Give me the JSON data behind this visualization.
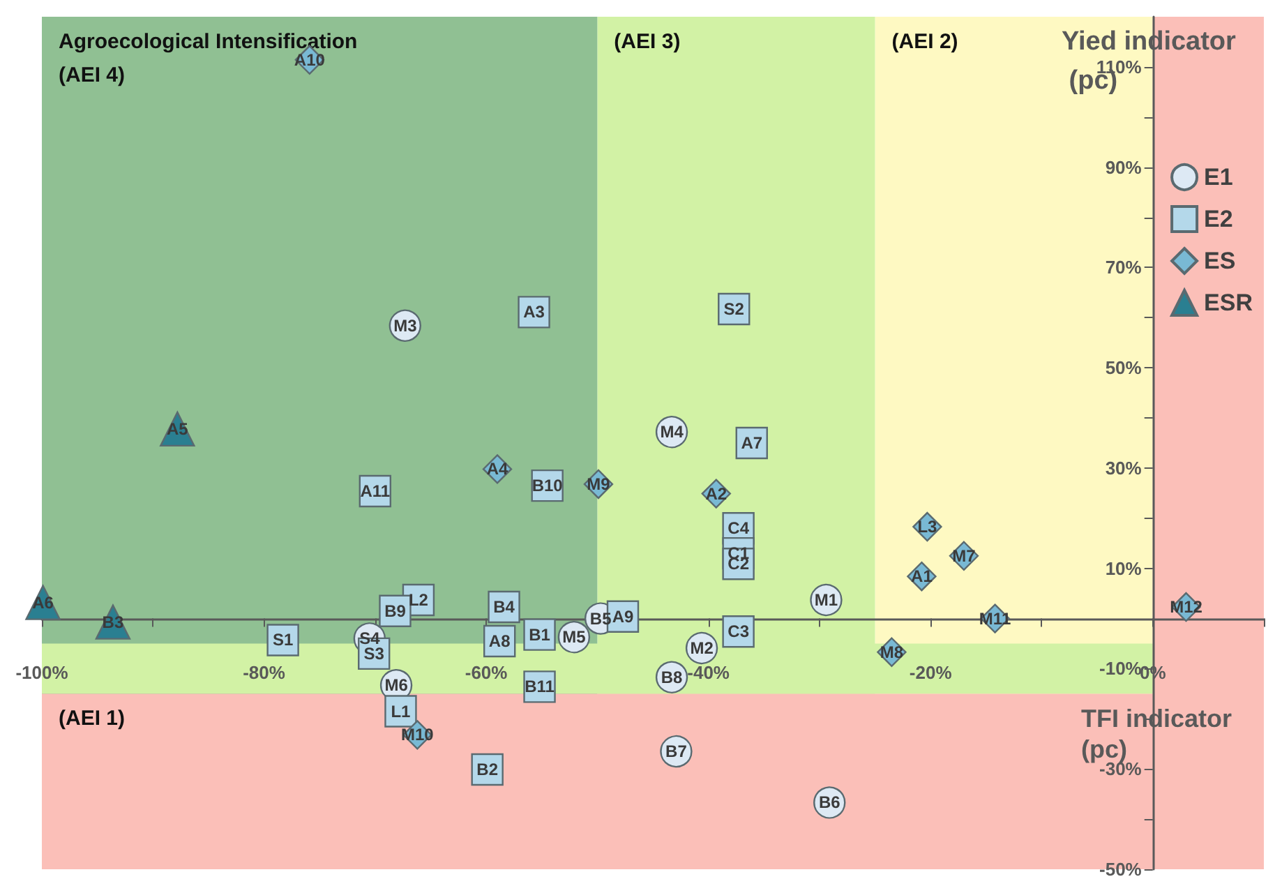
{
  "chart_data": {
    "type": "scatter",
    "xlabel": "TFI indicator (pc)",
    "ylabel": "Yied indicator (pc)",
    "xlim": [
      -100,
      10
    ],
    "ylim": [
      -50,
      120
    ],
    "xticks": [
      {
        "value": -100,
        "label": "-100%"
      },
      {
        "value": -90,
        "label": null
      },
      {
        "value": -80,
        "label": "-80%"
      },
      {
        "value": -70,
        "label": null
      },
      {
        "value": -60,
        "label": "-60%"
      },
      {
        "value": -50,
        "label": null
      },
      {
        "value": -40,
        "label": "-40%"
      },
      {
        "value": -30,
        "label": null
      },
      {
        "value": -20,
        "label": "-20%"
      },
      {
        "value": -10,
        "label": null
      },
      {
        "value": 0,
        "label": "0%"
      },
      {
        "value": 10,
        "label": null
      }
    ],
    "yticks": [
      {
        "value": -50,
        "label": "-50%"
      },
      {
        "value": -40,
        "label": null
      },
      {
        "value": -30,
        "label": "-30%"
      },
      {
        "value": -20,
        "label": null
      },
      {
        "value": -10,
        "label": "-10%"
      },
      {
        "value": 10,
        "label": "10%"
      },
      {
        "value": 20,
        "label": null
      },
      {
        "value": 30,
        "label": "30%"
      },
      {
        "value": 40,
        "label": null
      },
      {
        "value": 50,
        "label": "50%"
      },
      {
        "value": 60,
        "label": null
      },
      {
        "value": 70,
        "label": "70%"
      },
      {
        "value": 80,
        "label": null
      },
      {
        "value": 90,
        "label": "90%"
      },
      {
        "value": 100,
        "label": null
      },
      {
        "value": 110,
        "label": "110%"
      }
    ],
    "grid": false,
    "legend": "right",
    "bands": [
      {
        "axis": "x",
        "from": -25,
        "to": 0,
        "label": "(AEI 2)",
        "color": "#fef9c2"
      },
      {
        "axis": "x",
        "from": -50,
        "to": -25,
        "label": "(AEI 3)",
        "color": "#d2f2a5"
      },
      {
        "axis": "x",
        "from": -100,
        "to": -50,
        "label": "Agroecological Intensification (AEI 4)",
        "color": "#90c093"
      },
      {
        "axis": "y",
        "from": -15,
        "to": -5,
        "color": "#d2f2a5"
      },
      {
        "axis": "y",
        "from": -50,
        "to": -15,
        "label": "(AEI 1)",
        "color": "#fbbfb8"
      },
      {
        "axis": "x",
        "from": 0,
        "to": 10,
        "color": "#fbbfb8"
      }
    ],
    "series": [
      {
        "name": "E1",
        "color": "#dde9f4",
        "marker": "circle",
        "x": [
          -67.3,
          -43.3,
          -29.4,
          -52.1,
          -40.6,
          -70.5,
          -68.1,
          -43.3,
          -42.9,
          -29.1,
          -49.7
        ],
        "values": [
          58.4,
          37.2,
          3.7,
          -3.7,
          -5.9,
          -4.0,
          -13.3,
          -11.7,
          -26.5,
          -36.7,
          0.0
        ],
        "value_labels": [
          "M3",
          "M4",
          "M1",
          "M5",
          "M2",
          "S4",
          "M6",
          "B8",
          "B7",
          "B6",
          "B5"
        ]
      },
      {
        "name": "E2",
        "color": "#b4d8ea",
        "marker": "square",
        "x": [
          -55.7,
          -37.7,
          -36.1,
          -70.0,
          -54.5,
          -37.3,
          -37.3,
          -37.3,
          -37.3,
          -66.1,
          -68.2,
          -58.4,
          -47.7,
          -55.2,
          -78.3,
          -70.1,
          -58.8,
          -55.2,
          -67.7,
          -59.9
        ],
        "values": [
          61.1,
          61.7,
          35.0,
          25.4,
          26.5,
          18.0,
          13.0,
          10.9,
          -2.6,
          3.7,
          1.5,
          2.3,
          0.4,
          -3.2,
          -4.3,
          -7.0,
          -4.5,
          -13.6,
          -18.5,
          -30.1
        ],
        "value_labels": [
          "A3",
          "S2",
          "A7",
          "A11",
          "B10",
          "C4",
          "C1",
          "C2",
          "C3",
          "L2",
          "B9",
          "B4",
          "A9",
          "B1",
          "S1",
          "S3",
          "A8",
          "B11",
          "L1",
          "B2"
        ]
      },
      {
        "name": "ES",
        "color": "#79b9d4",
        "marker": "diamond",
        "x": [
          -75.9,
          -59.0,
          -49.9,
          -39.3,
          -20.3,
          -17.0,
          -20.8,
          -14.2,
          -23.5,
          -66.2,
          3.0
        ],
        "values": [
          111.4,
          29.8,
          26.8,
          24.9,
          18.3,
          12.5,
          8.4,
          0.0,
          -6.7,
          -23.2,
          2.3
        ],
        "value_labels": [
          "A10",
          "A4",
          "M9",
          "A2",
          "L3",
          "M7",
          "A1",
          "M11",
          "M8",
          "M10",
          "M12"
        ]
      },
      {
        "name": "ESR",
        "color": "#2a7f91",
        "marker": "triangle",
        "x": [
          -87.8,
          -99.9,
          -93.6
        ],
        "values": [
          37.8,
          3.2,
          -0.7
        ],
        "value_labels": [
          "A5",
          "A6",
          "B3"
        ]
      }
    ]
  }
}
